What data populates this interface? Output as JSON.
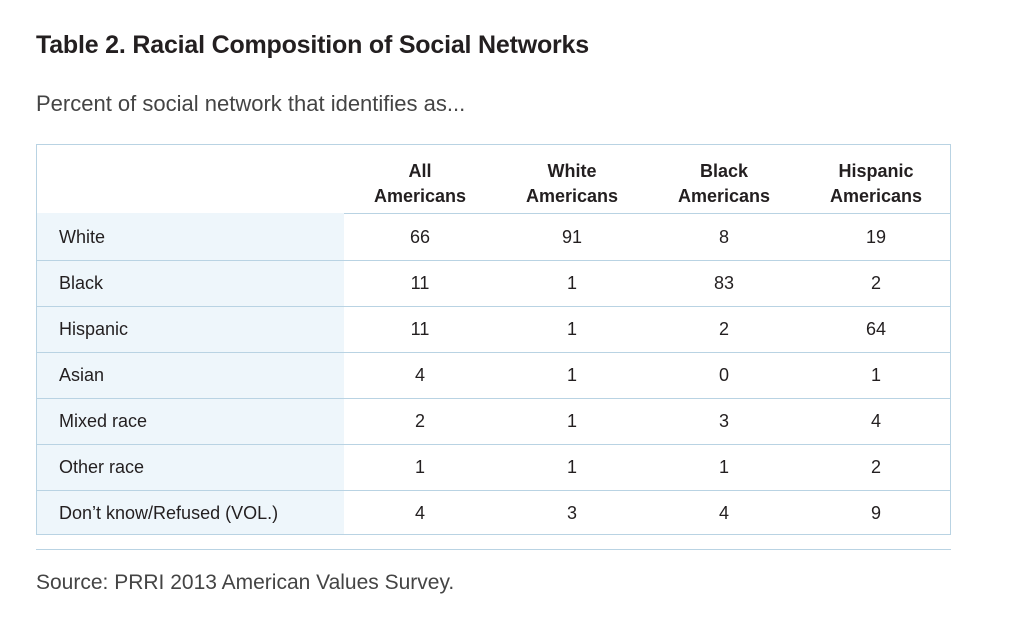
{
  "title": "Table 2. Racial Composition of Social Networks",
  "subtitle": "Percent of social network that identifies as...",
  "source": "Source: PRRI 2013 American Values Survey.",
  "colors": {
    "border": "#b9d3e3",
    "stub_background": "#eef6fb",
    "text": "#231f20"
  },
  "chart_data": {
    "type": "table",
    "title": "Table 2. Racial Composition of Social Networks",
    "subtitle": "Percent of social network that identifies as...",
    "columns": [
      {
        "line1": "All",
        "line2": "Americans"
      },
      {
        "line1": "White",
        "line2": "Americans"
      },
      {
        "line1": "Black",
        "line2": "Americans"
      },
      {
        "line1": "Hispanic",
        "line2": "Americans"
      }
    ],
    "rows": [
      {
        "label": "White",
        "values": [
          "66",
          "91",
          "8",
          "19"
        ]
      },
      {
        "label": "Black",
        "values": [
          "11",
          "1",
          "83",
          "2"
        ]
      },
      {
        "label": "Hispanic",
        "values": [
          "11",
          "1",
          "2",
          "64"
        ]
      },
      {
        "label": "Asian",
        "values": [
          "4",
          "1",
          "0",
          "1"
        ]
      },
      {
        "label": "Mixed race",
        "values": [
          "2",
          "1",
          "3",
          "4"
        ]
      },
      {
        "label": "Other race",
        "values": [
          "1",
          "1",
          "1",
          "2"
        ]
      },
      {
        "label": "Don’t know/Refused (VOL.)",
        "values": [
          "4",
          "3",
          "4",
          "9"
        ]
      }
    ]
  }
}
